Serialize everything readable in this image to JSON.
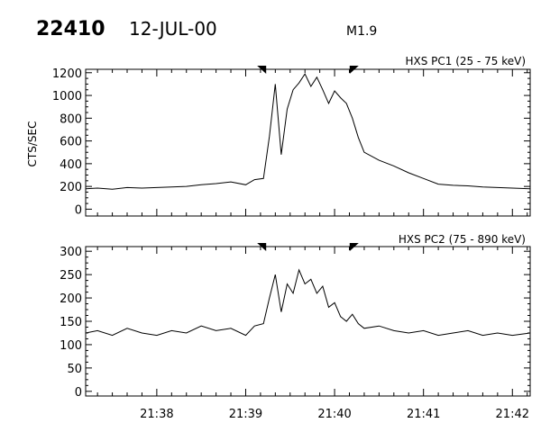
{
  "header": {
    "event_id": "22410",
    "date": "12-JUL-00",
    "flare_class": "M1.9"
  },
  "chart_data": [
    {
      "type": "line",
      "title": "HXS PC1 (25 - 75 keV)",
      "ylabel": "CTS/SEC",
      "ylim": [
        -60,
        1230
      ],
      "yticks": [
        0,
        200,
        400,
        600,
        800,
        1000,
        1200
      ],
      "x_range": [
        "21:37:12",
        "21:42:12"
      ],
      "markers_x": [
        "21:39:12",
        "21:40:12"
      ],
      "series": [
        {
          "x": [
            "21:37:12",
            "21:37:20",
            "21:37:30",
            "21:37:40",
            "21:37:50",
            "21:38:00",
            "21:38:10",
            "21:38:20",
            "21:38:30",
            "21:38:40",
            "21:38:50",
            "21:39:00",
            "21:39:06",
            "21:39:12",
            "21:39:16",
            "21:39:20",
            "21:39:24",
            "21:39:28",
            "21:39:32",
            "21:39:36",
            "21:39:40",
            "21:39:44",
            "21:39:48",
            "21:39:52",
            "21:39:56",
            "21:40:00",
            "21:40:04",
            "21:40:08",
            "21:40:12",
            "21:40:16",
            "21:40:20",
            "21:40:30",
            "21:40:40",
            "21:40:50",
            "21:41:00",
            "21:41:10",
            "21:41:20",
            "21:41:30",
            "21:41:40",
            "21:41:50",
            "21:42:00",
            "21:42:12"
          ],
          "values": [
            180,
            185,
            175,
            190,
            185,
            190,
            195,
            200,
            215,
            225,
            240,
            215,
            260,
            270,
            640,
            1100,
            480,
            880,
            1050,
            1110,
            1190,
            1080,
            1160,
            1050,
            930,
            1040,
            980,
            930,
            800,
            630,
            500,
            430,
            380,
            320,
            270,
            220,
            210,
            205,
            195,
            190,
            185,
            180
          ]
        }
      ]
    },
    {
      "type": "line",
      "title": "HXS PC2 (75 - 890 keV)",
      "ylabel": "",
      "ylim": [
        -10,
        310
      ],
      "yticks": [
        0,
        50,
        100,
        150,
        200,
        250,
        300
      ],
      "x_range": [
        "21:37:12",
        "21:42:12"
      ],
      "xtick_labels": [
        "21:38",
        "21:39",
        "21:40",
        "21:41",
        "21:42"
      ],
      "xtick_values": [
        "21:38:00",
        "21:39:00",
        "21:40:00",
        "21:41:00",
        "21:42:00"
      ],
      "markers_x": [
        "21:39:12",
        "21:40:12"
      ],
      "series": [
        {
          "x": [
            "21:37:12",
            "21:37:20",
            "21:37:30",
            "21:37:40",
            "21:37:50",
            "21:38:00",
            "21:38:10",
            "21:38:20",
            "21:38:30",
            "21:38:40",
            "21:38:50",
            "21:39:00",
            "21:39:06",
            "21:39:12",
            "21:39:16",
            "21:39:20",
            "21:39:24",
            "21:39:28",
            "21:39:32",
            "21:39:36",
            "21:39:40",
            "21:39:44",
            "21:39:48",
            "21:39:52",
            "21:39:56",
            "21:40:00",
            "21:40:04",
            "21:40:08",
            "21:40:12",
            "21:40:16",
            "21:40:20",
            "21:40:30",
            "21:40:40",
            "21:40:50",
            "21:41:00",
            "21:41:10",
            "21:41:20",
            "21:41:30",
            "21:41:40",
            "21:41:50",
            "21:42:00",
            "21:42:12"
          ],
          "values": [
            125,
            130,
            120,
            135,
            125,
            120,
            130,
            125,
            140,
            130,
            135,
            120,
            140,
            145,
            200,
            250,
            170,
            230,
            210,
            260,
            230,
            240,
            210,
            225,
            180,
            190,
            160,
            150,
            165,
            145,
            135,
            140,
            130,
            125,
            130,
            120,
            125,
            130,
            120,
            125,
            120,
            125
          ]
        }
      ]
    }
  ]
}
